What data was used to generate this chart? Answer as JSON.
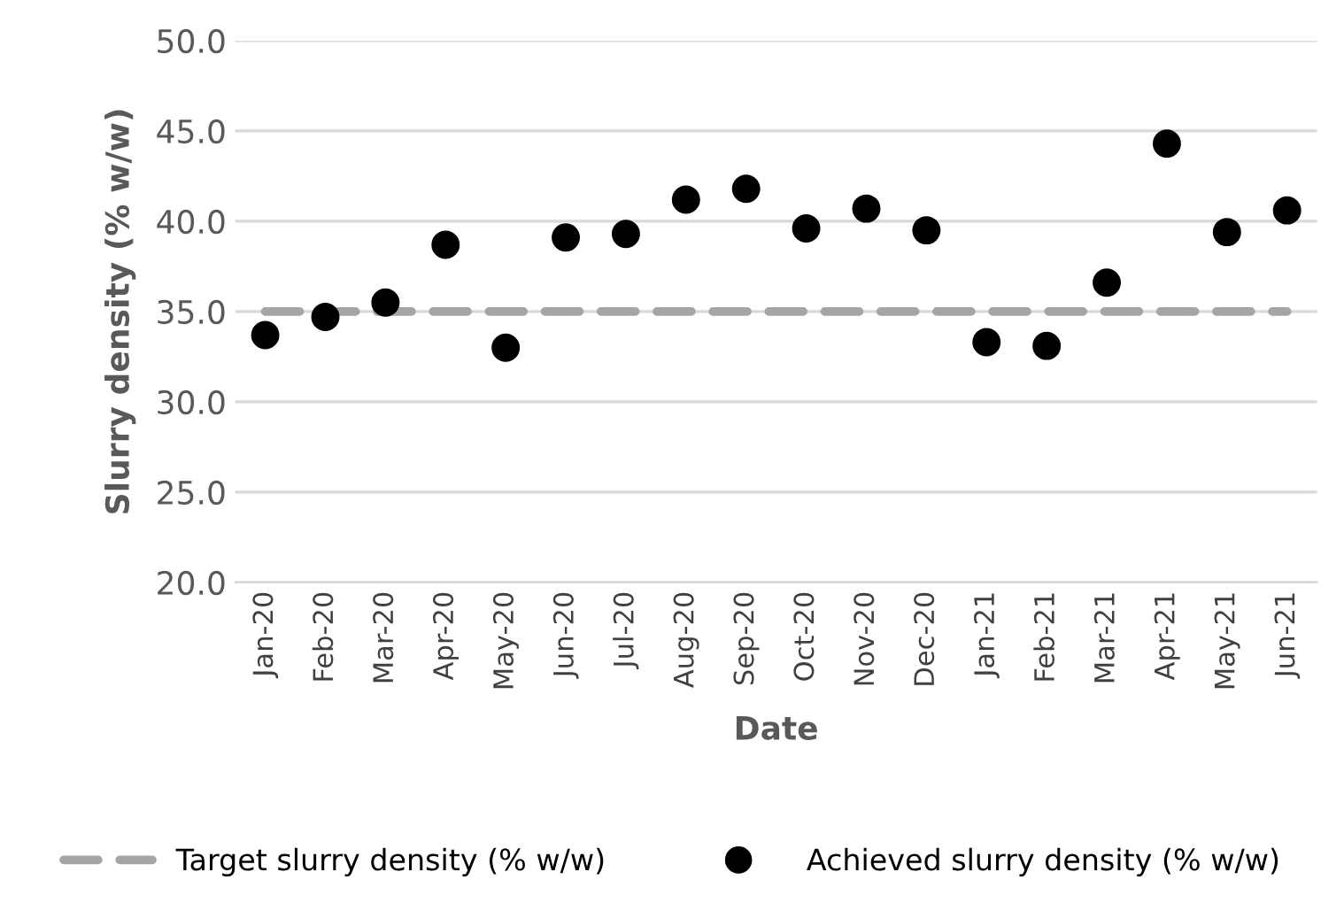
{
  "chart_data": {
    "type": "scatter",
    "xlabel": "Date",
    "ylabel": "Slurry density (% w/w)",
    "categories": [
      "Jan-20",
      "Feb-20",
      "Mar-20",
      "Apr-20",
      "May-20",
      "Jun-20",
      "Jul-20",
      "Aug-20",
      "Sep-20",
      "Oct-20",
      "Nov-20",
      "Dec-20",
      "Jan-21",
      "Feb-21",
      "Mar-21",
      "Apr-21",
      "May-21",
      "Jun-21"
    ],
    "series": [
      {
        "name": "Target slurry density (% w/w)",
        "type": "line",
        "color": "#a5a5a5",
        "line_style": "dashed",
        "marker": "none",
        "values": [
          35,
          35,
          35,
          35,
          35,
          35,
          35,
          35,
          35,
          35,
          35,
          35,
          35,
          35,
          35,
          35,
          35,
          35
        ]
      },
      {
        "name": "Achieved slurry density (% w/w)",
        "color": "#000000",
        "marker": "circle",
        "values": [
          33.7,
          34.7,
          35.5,
          38.7,
          33.0,
          39.1,
          39.3,
          41.2,
          41.8,
          39.6,
          40.7,
          39.5,
          33.3,
          33.1,
          36.6,
          44.3,
          39.4,
          40.6
        ]
      }
    ],
    "ylim": [
      20,
      50
    ],
    "yticks": [
      {
        "value": 20,
        "label": "20.0"
      },
      {
        "value": 25,
        "label": "25.0"
      },
      {
        "value": 30,
        "label": "30.0"
      },
      {
        "value": 35,
        "label": "35.0"
      },
      {
        "value": 40,
        "label": "40.0"
      },
      {
        "value": 45,
        "label": "45.0"
      },
      {
        "value": 50,
        "label": "50.0"
      }
    ],
    "grid": "y",
    "legend": "bottom"
  }
}
